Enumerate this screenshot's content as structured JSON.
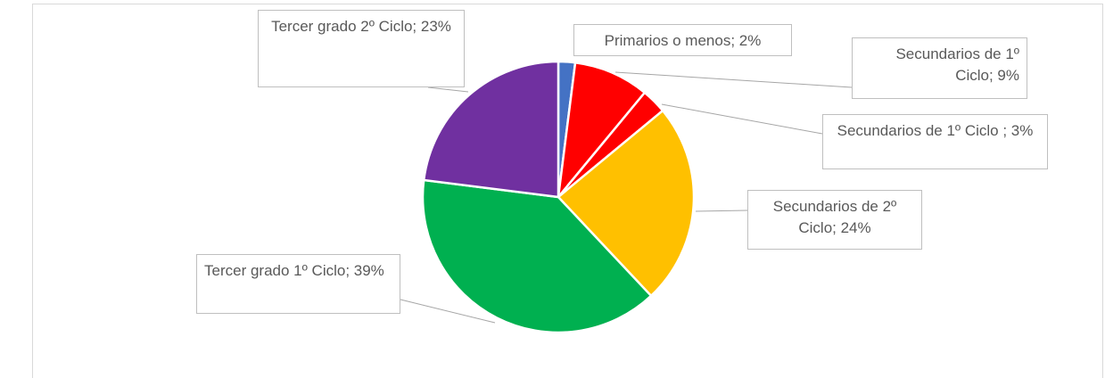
{
  "chart_data": {
    "type": "pie",
    "value_labels": [
      "Primarios o menos; 2%",
      "Secundarios de 1º Ciclo; 9%",
      "Secundarios de 1º Ciclo ; 3%",
      "Secundarios de 2º Ciclo; 24%",
      "Tercer grado 1º Ciclo; 39%",
      "Tercer grado 2º Ciclo; 23%"
    ],
    "values": [
      2,
      9,
      3,
      24,
      39,
      23
    ],
    "colors": [
      "#4472c4",
      "#ff0000",
      "#ff0000",
      "#ffc000",
      "#00b050",
      "#7030a0"
    ]
  }
}
